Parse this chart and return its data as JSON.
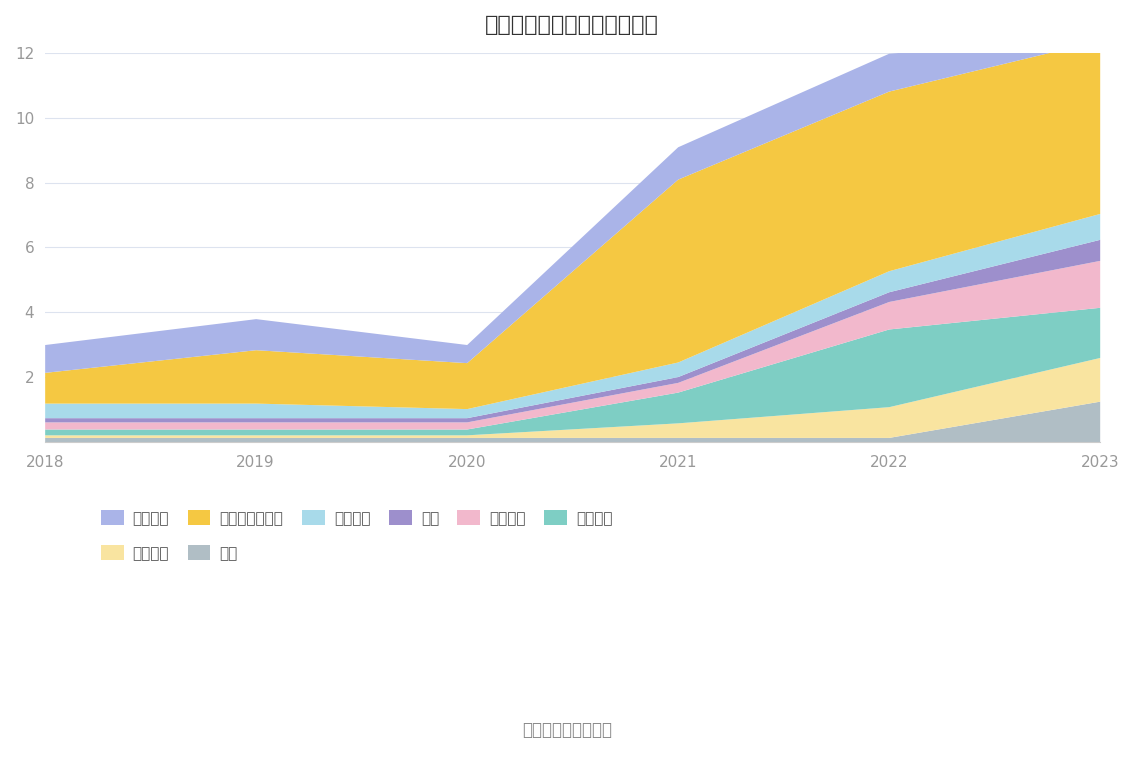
{
  "title": "历年主要资产堆积图（亿元）",
  "years": [
    2018,
    2019,
    2020,
    2021,
    2022,
    2023
  ],
  "series_bottom_to_top": [
    {
      "name": "其它",
      "color": "#b0bec5",
      "values": [
        0.13,
        0.13,
        0.13,
        0.13,
        0.13,
        1.25
      ]
    },
    {
      "name": "无形资产",
      "color": "#f9e4a0",
      "values": [
        0.08,
        0.08,
        0.08,
        0.45,
        0.95,
        1.35
      ]
    },
    {
      "name": "在建工程",
      "color": "#7ecec4",
      "values": [
        0.18,
        0.18,
        0.18,
        0.95,
        2.4,
        1.55
      ]
    },
    {
      "name": "固定资产",
      "color": "#f2b8cc",
      "values": [
        0.22,
        0.22,
        0.22,
        0.3,
        0.85,
        1.45
      ]
    },
    {
      "name": "存货",
      "color": "#9d8fcc",
      "values": [
        0.13,
        0.13,
        0.13,
        0.18,
        0.3,
        0.65
      ]
    },
    {
      "name": "应收账款",
      "color": "#a8daea",
      "values": [
        0.45,
        0.45,
        0.28,
        0.45,
        0.65,
        0.8
      ]
    },
    {
      "name": "交易性金融资产",
      "color": "#f5c842",
      "values": [
        0.95,
        1.65,
        1.42,
        5.65,
        5.55,
        5.35
      ]
    },
    {
      "name": "货币资金",
      "color": "#aab4e8",
      "values": [
        0.86,
        0.96,
        0.56,
        1.0,
        1.17,
        0.1
      ]
    }
  ],
  "ylim": [
    0,
    12
  ],
  "yticks": [
    0,
    2,
    4,
    6,
    8,
    10,
    12
  ],
  "source_text": "数据来源：恒生聚源",
  "background_color": "#ffffff",
  "grid_color": "#dde3ef",
  "legend_row1": [
    {
      "name": "货币资金",
      "color": "#aab4e8"
    },
    {
      "name": "交易性金融资产",
      "color": "#f5c842"
    },
    {
      "name": "应收账款",
      "color": "#a8daea"
    },
    {
      "name": "存货",
      "color": "#9d8fcc"
    },
    {
      "name": "固定资产",
      "color": "#f2b8cc"
    },
    {
      "name": "在建工程",
      "color": "#7ecec4"
    }
  ],
  "legend_row2": [
    {
      "name": "无形资产",
      "color": "#f9e4a0"
    },
    {
      "name": "其它",
      "color": "#b0bec5"
    }
  ]
}
